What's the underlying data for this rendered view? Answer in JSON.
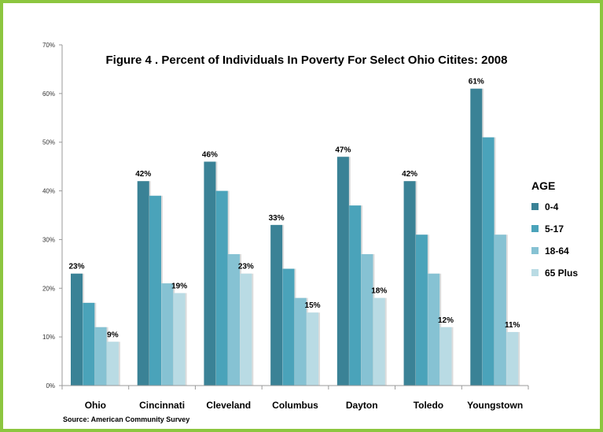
{
  "chart_data": {
    "type": "bar",
    "title": "Figure 4 . Percent of Individuals In Poverty For Select Ohio Citites: 2008",
    "categories": [
      "Ohio",
      "Cincinnati",
      "Cleveland",
      "Columbus",
      "Dayton",
      "Toledo",
      "Youngstown"
    ],
    "series": [
      {
        "name": "0-4",
        "values": [
          23,
          42,
          46,
          33,
          47,
          42,
          61
        ],
        "color": "#3a8296"
      },
      {
        "name": "5-17",
        "values": [
          17,
          39,
          40,
          24,
          37,
          31,
          51
        ],
        "color": "#4aa3ba"
      },
      {
        "name": "18-64",
        "values": [
          12,
          21,
          27,
          18,
          27,
          23,
          31
        ],
        "color": "#86c2d3"
      },
      {
        "name": "65 Plus",
        "values": [
          9,
          19,
          23,
          15,
          18,
          12,
          11
        ],
        "color": "#b9dbe4"
      }
    ],
    "data_labels": {
      "0-4": [
        "23%",
        "42%",
        "46%",
        "33%",
        "47%",
        "42%",
        "61%"
      ],
      "65 Plus": [
        "9%",
        "19%",
        "23%",
        "15%",
        "18%",
        "12%",
        "11%"
      ]
    },
    "yticks": [
      "0%",
      "10%",
      "20%",
      "30%",
      "40%",
      "50%",
      "60%",
      "70%"
    ],
    "ylim": [
      0,
      70
    ],
    "legend_title": "AGE",
    "legend_position": "right",
    "source": "Source: American Community Survey",
    "grid": false
  },
  "colors": {
    "border": "#8cc63f"
  }
}
